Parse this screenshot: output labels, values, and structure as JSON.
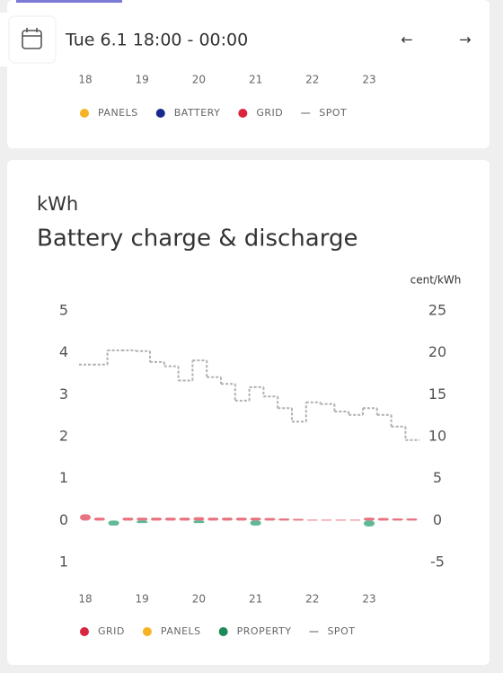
{
  "header": {
    "range": "Tue 6.1 18:00 - 00:00",
    "prev": "←",
    "next": "→"
  },
  "top_chart": {
    "x_labels": [
      "18",
      "19",
      "20",
      "21",
      "22",
      "23"
    ],
    "legend": [
      {
        "name": "PANELS",
        "color": "#f5b323"
      },
      {
        "name": "BATTERY",
        "color": "#1a2a8c"
      },
      {
        "name": "GRID",
        "color": "#d7263d"
      },
      {
        "name": "SPOT",
        "color": "#b0b0b0"
      }
    ]
  },
  "chart_data": {
    "type": "bar",
    "subtitle": "kWh",
    "title": "Battery charge & discharge",
    "y2_label": "cent/kWh",
    "xlim": [
      18,
      24
    ],
    "xticks": [
      18,
      19,
      20,
      21,
      22,
      23
    ],
    "x": [
      18,
      18.25,
      18.5,
      18.75,
      19,
      19.25,
      19.5,
      19.75,
      20,
      20.25,
      20.5,
      20.75,
      21,
      21.25,
      21.5,
      21.75,
      22,
      22.25,
      22.5,
      22.75,
      23,
      23.25,
      23.5,
      23.75
    ],
    "ylim": [
      -1,
      5
    ],
    "yticks": [
      5,
      4,
      3,
      2,
      1,
      0,
      {
        "value": -1,
        "label": "1"
      }
    ],
    "y2lim": [
      -5,
      25
    ],
    "y2ticks": [
      25,
      20,
      15,
      10,
      5,
      0,
      -5
    ],
    "series": [
      {
        "name": "GRID",
        "color": "#d7263d",
        "bar_color": "#e8727f",
        "values": [
          0.15,
          0.07,
          0,
          0.07,
          0.07,
          0.07,
          0.07,
          0.07,
          0.08,
          0.07,
          0.07,
          0.07,
          0.07,
          0.06,
          0.05,
          0.04,
          0.02,
          0.02,
          0.02,
          0.02,
          0.07,
          0.06,
          0.05,
          0.05
        ]
      },
      {
        "name": "PANELS",
        "color": "#f5b323",
        "bar_color": "#f5b323",
        "values": [
          0,
          0,
          0,
          0,
          0,
          0,
          0,
          0,
          0,
          0,
          0,
          0,
          0,
          0,
          0,
          0,
          0,
          0,
          0,
          0,
          0,
          0,
          0,
          0
        ]
      },
      {
        "name": "PROPERTY",
        "color": "#1e8a5a",
        "bar_color": "#5fb896",
        "values": [
          0,
          0,
          -0.12,
          0,
          -0.06,
          0,
          0,
          0,
          -0.06,
          0,
          0,
          0,
          -0.12,
          0,
          0,
          0,
          0,
          0,
          0,
          0,
          -0.14,
          0,
          0,
          0
        ]
      },
      {
        "name": "SPOT",
        "color": "#b0b0b0",
        "axis": "y2",
        "line": "step",
        "values": [
          18.6,
          18.6,
          20.3,
          20.3,
          20.2,
          18.9,
          18.4,
          16.7,
          19.1,
          17.1,
          16.3,
          14.3,
          15.9,
          14.8,
          13.4,
          11.8,
          14.1,
          13.9,
          13.0,
          12.6,
          13.4,
          12.6,
          11.2,
          9.6
        ]
      }
    ]
  }
}
